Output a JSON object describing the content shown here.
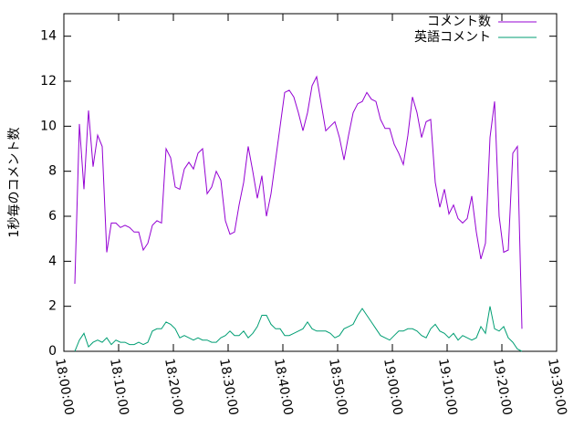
{
  "chart_data": {
    "type": "line",
    "ylabel": "1秒毎のコメント数",
    "x": [
      "18:02:00",
      "18:02:50",
      "18:03:40",
      "18:04:30",
      "18:05:20",
      "18:06:10",
      "18:07:00",
      "18:07:50",
      "18:08:40",
      "18:09:30",
      "18:10:20",
      "18:11:10",
      "18:12:00",
      "18:12:50",
      "18:13:40",
      "18:14:30",
      "18:15:20",
      "18:16:10",
      "18:17:00",
      "18:17:50",
      "18:18:40",
      "18:19:30",
      "18:20:20",
      "18:21:10",
      "18:22:00",
      "18:22:50",
      "18:23:40",
      "18:24:30",
      "18:25:20",
      "18:26:10",
      "18:27:00",
      "18:27:50",
      "18:28:40",
      "18:29:30",
      "18:30:20",
      "18:31:10",
      "18:32:00",
      "18:32:50",
      "18:33:40",
      "18:34:30",
      "18:35:20",
      "18:36:10",
      "18:37:00",
      "18:37:50",
      "18:38:40",
      "18:39:30",
      "18:40:20",
      "18:41:10",
      "18:42:00",
      "18:42:50",
      "18:43:40",
      "18:44:30",
      "18:45:20",
      "18:46:10",
      "18:47:00",
      "18:47:50",
      "18:48:40",
      "18:49:30",
      "18:50:20",
      "18:51:10",
      "18:52:00",
      "18:52:50",
      "18:53:40",
      "18:54:30",
      "18:55:20",
      "18:56:10",
      "18:57:00",
      "18:57:50",
      "18:58:40",
      "18:59:30",
      "19:00:20",
      "19:01:10",
      "19:02:00",
      "19:02:50",
      "19:03:40",
      "19:04:30",
      "19:05:20",
      "19:06:10",
      "19:07:00",
      "19:07:50",
      "19:08:40",
      "19:09:30",
      "19:10:20",
      "19:11:10",
      "19:12:00",
      "19:12:50",
      "19:13:40",
      "19:14:30",
      "19:15:20",
      "19:16:10",
      "19:17:00",
      "19:17:50",
      "19:18:40",
      "19:19:30",
      "19:20:20",
      "19:21:10",
      "19:22:00",
      "19:22:50",
      "19:23:40"
    ],
    "series": [
      {
        "name": "コメント数",
        "color": "#9400d3",
        "values": [
          3.0,
          10.1,
          7.2,
          10.7,
          8.2,
          9.6,
          9.1,
          4.4,
          5.7,
          5.7,
          5.5,
          5.6,
          5.5,
          5.3,
          5.3,
          4.5,
          4.8,
          5.6,
          5.8,
          5.7,
          9.0,
          8.6,
          7.3,
          7.2,
          8.1,
          8.4,
          8.1,
          8.8,
          9.0,
          7.0,
          7.3,
          8.0,
          7.6,
          5.8,
          5.2,
          5.3,
          6.5,
          7.5,
          9.1,
          8.0,
          6.8,
          7.8,
          6.0,
          7.0,
          8.5,
          10.0,
          11.5,
          11.6,
          11.3,
          10.6,
          9.8,
          10.6,
          11.8,
          12.2,
          11.0,
          9.8,
          10.0,
          10.2,
          9.5,
          8.5,
          9.6,
          10.6,
          11.0,
          11.1,
          11.5,
          11.2,
          11.1,
          10.3,
          9.9,
          9.9,
          9.2,
          8.8,
          8.3,
          9.6,
          11.3,
          10.6,
          9.5,
          10.2,
          10.3,
          7.5,
          6.4,
          7.2,
          6.1,
          6.5,
          5.9,
          5.7,
          5.9,
          6.9,
          5.3,
          4.1,
          4.8,
          9.5,
          11.1,
          6.0,
          4.4,
          4.5,
          8.8,
          9.1,
          1.0
        ]
      },
      {
        "name": "英語コメント",
        "color": "#009e73",
        "values": [
          0.0,
          0.5,
          0.8,
          0.2,
          0.4,
          0.5,
          0.4,
          0.6,
          0.3,
          0.5,
          0.4,
          0.4,
          0.3,
          0.3,
          0.4,
          0.3,
          0.4,
          0.9,
          1.0,
          1.0,
          1.3,
          1.2,
          1.0,
          0.6,
          0.7,
          0.6,
          0.5,
          0.6,
          0.5,
          0.5,
          0.4,
          0.4,
          0.6,
          0.7,
          0.9,
          0.7,
          0.7,
          0.9,
          0.6,
          0.8,
          1.1,
          1.6,
          1.6,
          1.2,
          1.0,
          1.0,
          0.7,
          0.7,
          0.8,
          0.9,
          1.0,
          1.3,
          1.0,
          0.9,
          0.9,
          0.9,
          0.8,
          0.6,
          0.7,
          1.0,
          1.1,
          1.2,
          1.6,
          1.9,
          1.6,
          1.3,
          1.0,
          0.7,
          0.6,
          0.5,
          0.7,
          0.9,
          0.9,
          1.0,
          1.0,
          0.9,
          0.7,
          0.6,
          1.0,
          1.2,
          0.9,
          0.8,
          0.6,
          0.8,
          0.5,
          0.7,
          0.6,
          0.5,
          0.6,
          1.1,
          0.8,
          2.0,
          1.0,
          0.9,
          1.1,
          0.6,
          0.4,
          0.1,
          0.0
        ]
      }
    ],
    "xlim": [
      "18:00:00",
      "19:30:00"
    ],
    "xticks": [
      "18:00:00",
      "18:10:00",
      "18:20:00",
      "18:30:00",
      "18:40:00",
      "18:50:00",
      "19:00:00",
      "19:10:00",
      "19:20:00",
      "19:30:00"
    ],
    "ylim": [
      0,
      15
    ],
    "yticks": [
      0,
      2,
      4,
      6,
      8,
      10,
      12,
      14
    ],
    "legend": "top-right"
  }
}
